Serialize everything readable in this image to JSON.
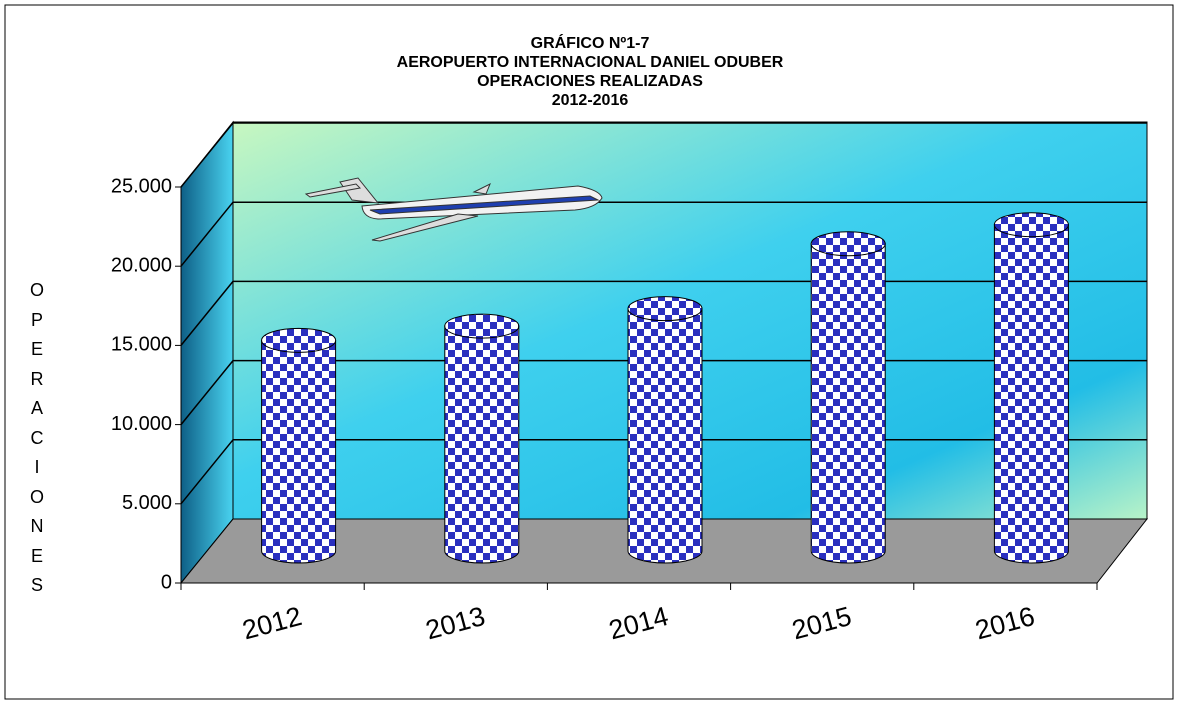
{
  "chart_data": {
    "type": "bar",
    "title": [
      "GRÁFICO Nº1-7",
      "AEROPUERTO INTERNACIONAL DANIEL ODUBER",
      "OPERACIONES REALIZADAS",
      "2012-2016"
    ],
    "y_label": "OPERACIONES",
    "categories": [
      "2012",
      "2013",
      "2014",
      "2015",
      "2016"
    ],
    "values": [
      13300,
      14200,
      15300,
      19400,
      20600
    ],
    "color": "#2a2fbf",
    "ylim": [
      0,
      25000
    ],
    "yticks": [
      0,
      {
        "value": 5000,
        "label": "5.000"
      },
      {
        "value": 10000,
        "label": "10.000"
      },
      {
        "value": 15000,
        "label": "15.000"
      },
      {
        "value": 20000,
        "label": "20.000"
      },
      {
        "value": 25000,
        "label": "25.000"
      }
    ],
    "grid": true
  }
}
